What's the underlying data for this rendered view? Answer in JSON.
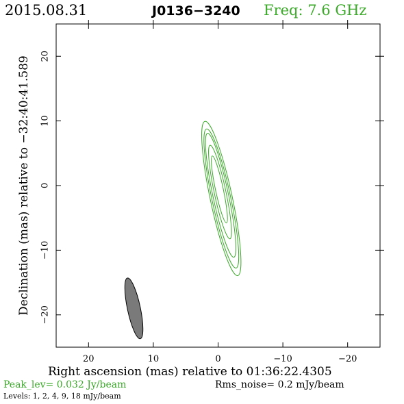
{
  "header": {
    "date": "2015.08.31",
    "source": "J0136−3240",
    "freq_label": "Freq:",
    "freq_value": "7.6 GHz"
  },
  "colors": {
    "accent": "#3aaa28",
    "beam": "#7a7a7a",
    "axes": "#000000"
  },
  "chart_data": {
    "type": "contour",
    "xlabel": "Right ascension (mas) relative to 01:36:22.4305",
    "ylabel": "Declination (mas) relative to −32:40:41.589",
    "xlim": [
      25,
      -25
    ],
    "ylim": [
      -25,
      25
    ],
    "xticks": [
      20,
      10,
      0,
      -10,
      -20
    ],
    "yticks": [
      20,
      10,
      0,
      -10,
      -20
    ],
    "xtick_labels": [
      "20",
      "10",
      "0",
      "−10",
      "−20"
    ],
    "ytick_labels": [
      "20",
      "10",
      "0",
      "−10",
      "−20"
    ],
    "peak_label": "Peak_lev=  0.032 Jy/beam",
    "rms_label": "Rms_noise=  0.2 mJy/beam",
    "levels_label": "Levels:   1,   2,   4,   9,  18 mJy/beam",
    "levels_mjy": [
      1,
      2,
      4,
      9,
      18
    ],
    "contours": [
      {
        "level": 1,
        "center": [
          -0.5,
          -2.0
        ],
        "semi_major": 12.2,
        "semi_minor": 1.7,
        "pa_deg": -12
      },
      {
        "level": 2,
        "center": [
          -0.5,
          -2.0
        ],
        "semi_major": 11.0,
        "semi_minor": 1.45,
        "pa_deg": -12
      },
      {
        "level": 4,
        "center": [
          -0.4,
          -1.5
        ],
        "semi_major": 9.8,
        "semi_minor": 1.2,
        "pa_deg": -12
      },
      {
        "level": 9,
        "center": [
          -0.3,
          -1.0
        ],
        "semi_major": 7.4,
        "semi_minor": 0.9,
        "pa_deg": -12
      },
      {
        "level": 18,
        "center": [
          -0.2,
          -0.6
        ],
        "semi_major": 5.3,
        "semi_minor": 0.6,
        "pa_deg": -12
      }
    ],
    "beam": {
      "center": [
        13.0,
        -19.0
      ],
      "major": 9.6,
      "minor": 2.0,
      "pa_deg": -12
    }
  }
}
